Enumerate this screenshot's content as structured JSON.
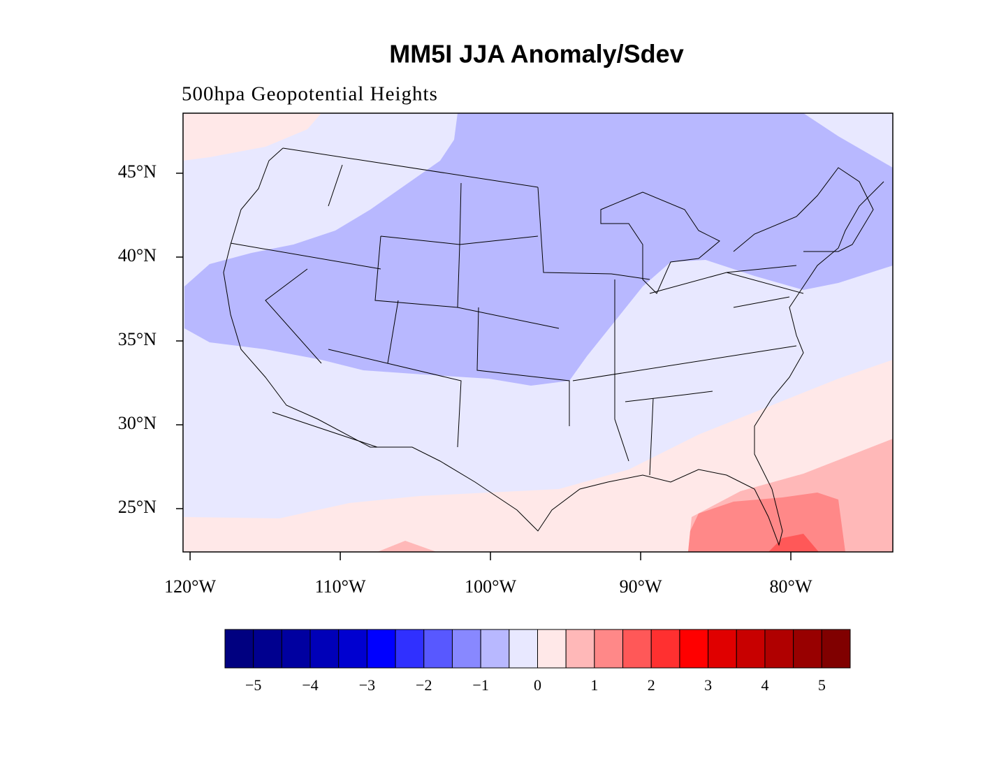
{
  "map": {
    "title": "MM5I JJA Anomaly/Sdev",
    "subtitle": "500hpa Geopotential Heights",
    "xlim": [
      -120.47,
      -73.21
    ],
    "ylim": [
      22.42,
      48.58
    ],
    "lat_ticks": [
      {
        "value": 45,
        "label": "45°N"
      },
      {
        "value": 40,
        "label": "40°N"
      },
      {
        "value": 35,
        "label": "35°N"
      },
      {
        "value": 30,
        "label": "30°N"
      },
      {
        "value": 25,
        "label": "25°N"
      }
    ],
    "lon_ticks": [
      {
        "value": -120,
        "label": "120°W"
      },
      {
        "value": -110,
        "label": "110°W"
      },
      {
        "value": -100,
        "label": "100°W"
      },
      {
        "value": -90,
        "label": "90°W"
      },
      {
        "value": -80,
        "label": "80°W"
      }
    ],
    "colorbar": {
      "lim": [
        -5.5,
        5.5
      ],
      "colors": [
        "#000080",
        "#00008f",
        "#0000a0",
        "#0000b8",
        "#0000d0",
        "#0000ff",
        "#3030ff",
        "#5858ff",
        "#8888ff",
        "#b8b8ff",
        "#e8e8ff",
        "#ffe8e8",
        "#ffb8b8",
        "#ff8888",
        "#ff5858",
        "#ff3030",
        "#ff0000",
        "#e00000",
        "#c80000",
        "#b00000",
        "#980000",
        "#800000"
      ],
      "ticks": [
        {
          "value": -5,
          "label": "−5"
        },
        {
          "value": -4,
          "label": "−4"
        },
        {
          "value": -3,
          "label": "−3"
        },
        {
          "value": -2,
          "label": "−2"
        },
        {
          "value": -1,
          "label": "−1"
        },
        0,
        1,
        2,
        3,
        4,
        5
      ]
    }
  }
}
